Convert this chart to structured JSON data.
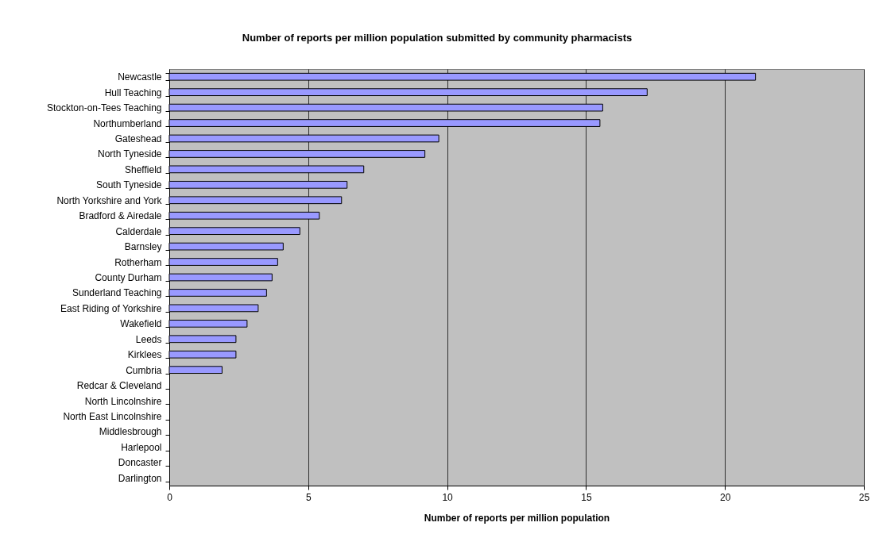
{
  "chart_data": {
    "type": "bar",
    "orientation": "horizontal",
    "title": "Number of reports per million population submitted by community pharmacists",
    "xlabel": "Number of reports per million population",
    "categories": [
      "Newcastle",
      "Hull Teaching",
      "Stockton-on-Tees Teaching",
      "Northumberland",
      "Gateshead",
      "North Tyneside",
      "Sheffield",
      "South Tyneside",
      "North Yorkshire and York",
      "Bradford & Airedale",
      "Calderdale",
      "Barnsley",
      "Rotherham",
      "County Durham",
      "Sunderland Teaching",
      "East Riding of Yorkshire",
      "Wakefield",
      "Leeds",
      "Kirklees",
      "Cumbria",
      "Redcar & Cleveland",
      "North Lincolnshire",
      "North East Lincolnshire",
      "Middlesbrough",
      "Harlepool",
      "Doncaster",
      "Darlington"
    ],
    "values": [
      21.1,
      17.2,
      15.6,
      15.5,
      9.7,
      9.2,
      7.0,
      6.4,
      6.2,
      5.4,
      4.7,
      4.1,
      3.9,
      3.7,
      3.5,
      3.2,
      2.8,
      2.4,
      2.4,
      1.9,
      0,
      0,
      0,
      0,
      0,
      0,
      0
    ],
    "color": "#9999ff",
    "xlim": [
      0,
      25
    ],
    "xticks": [
      0,
      5,
      10,
      15,
      20,
      25
    ],
    "grid": "x"
  }
}
